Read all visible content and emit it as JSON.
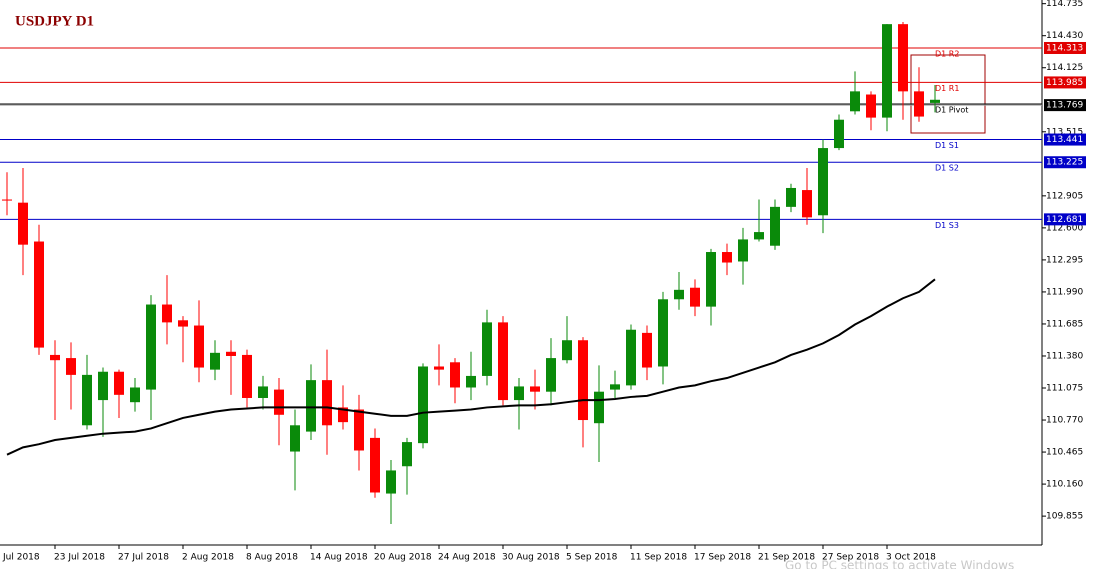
{
  "chart_data": {
    "type": "candlestick",
    "title": "USDJPY D1",
    "first_date_label": "Jul 2018",
    "categories": [
      null,
      null,
      null,
      "23 Jul 2018",
      null,
      null,
      null,
      "27 Jul 2018",
      null,
      null,
      null,
      "2 Aug 2018",
      null,
      null,
      null,
      "8 Aug 2018",
      null,
      null,
      null,
      "14 Aug 2018",
      null,
      null,
      null,
      "20 Aug 2018",
      null,
      null,
      null,
      "24 Aug 2018",
      null,
      null,
      null,
      "30 Aug 2018",
      null,
      null,
      null,
      "5 Sep 2018",
      null,
      null,
      null,
      "11 Sep 2018",
      null,
      null,
      null,
      "17 Sep 2018",
      null,
      null,
      null,
      "21 Sep 2018",
      null,
      null,
      null,
      "27 Sep 2018",
      null,
      null,
      null,
      "3 Oct 2018",
      null,
      null,
      null
    ],
    "open": [
      112.87,
      112.84,
      112.47,
      111.39,
      111.36,
      110.72,
      110.96,
      111.23,
      110.94,
      111.06,
      111.87,
      111.72,
      111.67,
      111.25,
      111.42,
      111.39,
      110.98,
      111.06,
      110.47,
      110.66,
      111.15,
      110.89,
      110.87,
      110.6,
      110.07,
      110.33,
      110.55,
      111.28,
      111.32,
      111.08,
      111.19,
      111.7,
      110.96,
      111.09,
      111.04,
      111.34,
      111.53,
      110.74,
      111.06,
      111.1,
      111.6,
      111.28,
      111.92,
      112.03,
      111.85,
      112.37,
      112.28,
      112.49,
      112.43,
      112.8,
      112.96,
      112.72,
      113.36,
      113.71,
      113.87,
      113.65,
      114.54,
      113.9,
      113.79
    ],
    "high": [
      113.13,
      113.17,
      112.63,
      111.53,
      111.51,
      111.39,
      111.27,
      111.25,
      111.17,
      111.96,
      112.15,
      111.76,
      111.91,
      111.53,
      111.53,
      111.44,
      111.19,
      111.17,
      110.87,
      111.3,
      111.44,
      111.1,
      111.01,
      110.69,
      110.39,
      110.6,
      111.31,
      111.49,
      111.36,
      111.42,
      111.82,
      111.76,
      111.17,
      111.25,
      111.55,
      111.76,
      111.56,
      111.29,
      111.24,
      111.68,
      111.67,
      111.99,
      112.18,
      112.11,
      112.4,
      112.45,
      112.6,
      112.87,
      112.87,
      113.02,
      113.17,
      113.44,
      113.68,
      114.09,
      113.9,
      114.54,
      114.56,
      114.13,
      113.96
    ],
    "low": [
      112.72,
      112.15,
      111.39,
      110.77,
      110.87,
      110.68,
      110.61,
      110.79,
      110.85,
      110.77,
      111.49,
      111.32,
      111.13,
      111.15,
      111.01,
      110.89,
      110.87,
      110.53,
      110.1,
      110.58,
      110.44,
      110.68,
      110.29,
      110.03,
      109.78,
      110.06,
      110.5,
      111.1,
      110.93,
      110.96,
      111.1,
      110.91,
      110.68,
      110.87,
      110.91,
      111.31,
      110.51,
      110.37,
      110.98,
      111.06,
      111.15,
      111.11,
      111.82,
      111.76,
      111.67,
      112.15,
      112.06,
      112.47,
      112.39,
      112.75,
      112.63,
      112.55,
      113.34,
      113.68,
      113.53,
      113.52,
      113.63,
      113.61,
      113.7
    ],
    "close": [
      112.86,
      112.44,
      111.46,
      111.34,
      111.2,
      111.2,
      111.23,
      111.01,
      111.08,
      111.87,
      111.7,
      111.66,
      111.27,
      111.41,
      111.38,
      110.98,
      111.09,
      110.82,
      110.72,
      111.15,
      110.72,
      110.75,
      110.48,
      110.08,
      110.29,
      110.56,
      111.28,
      111.25,
      111.08,
      111.19,
      111.7,
      110.96,
      111.09,
      111.04,
      111.36,
      111.53,
      110.77,
      111.04,
      111.11,
      111.63,
      111.27,
      111.92,
      112.01,
      111.85,
      112.37,
      112.27,
      112.49,
      112.56,
      112.8,
      112.98,
      112.7,
      113.36,
      113.63,
      113.9,
      113.65,
      114.54,
      113.9,
      113.66,
      113.82
    ],
    "up_color": "#0a8a0a",
    "down_color": "#ff0000",
    "ma": {
      "color": "#000000",
      "values": [
        110.44,
        110.51,
        110.54,
        110.58,
        110.6,
        110.62,
        110.64,
        110.65,
        110.66,
        110.69,
        110.74,
        110.79,
        110.82,
        110.85,
        110.87,
        110.88,
        110.89,
        110.89,
        110.89,
        110.89,
        110.89,
        110.87,
        110.85,
        110.83,
        110.81,
        110.81,
        110.84,
        110.85,
        110.86,
        110.87,
        110.89,
        110.9,
        110.91,
        110.91,
        110.92,
        110.94,
        110.96,
        110.96,
        110.97,
        110.99,
        111.0,
        111.04,
        111.08,
        111.1,
        111.14,
        111.17,
        111.22,
        111.27,
        111.32,
        111.39,
        111.44,
        111.5,
        111.58,
        111.68,
        111.76,
        111.85,
        111.93,
        111.99,
        112.11
      ]
    },
    "levels": [
      {
        "name": "D1 R2",
        "value": 114.313,
        "color": "#e00000"
      },
      {
        "name": "D1 R1",
        "value": 113.985,
        "color": "#e00000"
      },
      {
        "name": "D1 Pivot",
        "value": 113.78,
        "color": "#000000"
      },
      {
        "name": "D1 S1",
        "value": 113.441,
        "color": "#0000c8"
      },
      {
        "name": "D1 S2",
        "value": 113.225,
        "color": "#0000c8"
      },
      {
        "name": "D1 S3",
        "value": 112.681,
        "color": "#0000c8"
      }
    ],
    "bid": 113.769,
    "ylim": [
      109.58,
      114.77
    ],
    "yticks": [
      114.735,
      {
        "value": 114.43,
        "label": "114.430"
      },
      114.125,
      113.515,
      112.905,
      {
        "value": 112.6,
        "label": "112.600"
      },
      112.295,
      {
        "value": 111.99,
        "label": "111.990"
      },
      111.685,
      {
        "value": 111.38,
        "label": "111.380"
      },
      111.075,
      {
        "value": 110.77,
        "label": "110.770"
      },
      110.465,
      {
        "value": 110.16,
        "label": "110.160"
      },
      109.855
    ],
    "watermark": "Go to PC settings to activate Windows"
  }
}
